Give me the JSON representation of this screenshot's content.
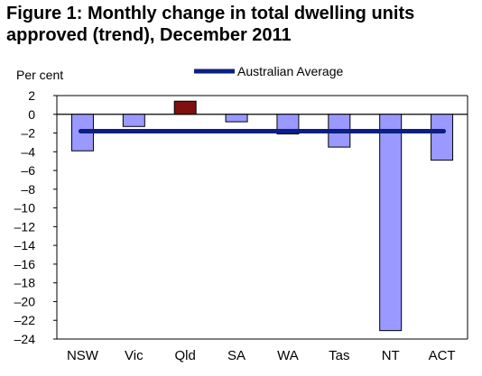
{
  "title_lines": [
    "Figure 1: Monthly change in total dwelling units",
    "approved (trend), December 2011"
  ],
  "colors": {
    "negative_bar": "#9999ff",
    "positive_bar": "#7f1010",
    "average_line": "#0b1f80",
    "bar_stroke": "#000000"
  },
  "chart_data": {
    "type": "bar",
    "title": "Figure 1: Monthly change in total dwelling units approved (trend), December 2011",
    "ylabel": "Per cent",
    "xlabel": "",
    "categories": [
      "NSW",
      "Vic",
      "Qld",
      "SA",
      "WA",
      "Tas",
      "NT",
      "ACT"
    ],
    "values": [
      -3.9,
      -1.3,
      1.4,
      -0.8,
      -2.1,
      -3.5,
      -23.1,
      -4.9
    ],
    "average": {
      "name": "Australian Average",
      "value": -1.8
    },
    "ylim": [
      -24,
      2
    ],
    "yticks": [
      2,
      0,
      -2,
      -4,
      -6,
      -8,
      -10,
      -12,
      -14,
      -16,
      -18,
      -20,
      -22,
      -24
    ],
    "ytick_labels": [
      "2",
      "0",
      "–2",
      "–4",
      "–6",
      "–8",
      "–10",
      "–12",
      "–14",
      "–16",
      "–18",
      "–20",
      "–22",
      "–24"
    ],
    "grid": false,
    "legend_position": "top-center"
  }
}
